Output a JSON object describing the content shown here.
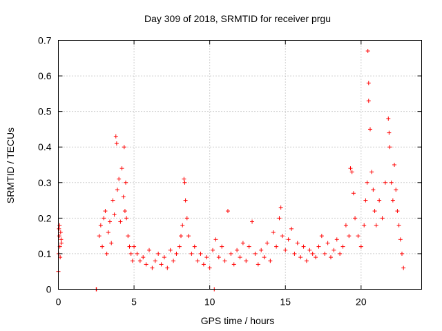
{
  "chart_data": {
    "type": "scatter",
    "title": "Day 309 of 2018, SRMTID for receiver prgu",
    "xlabel": "GPS time / hours",
    "ylabel": "SRMTID / TECUs",
    "xlim": [
      0,
      24
    ],
    "ylim": [
      0,
      0.7
    ],
    "x_ticks": [
      0,
      5,
      10,
      15,
      20
    ],
    "x_tick_labels": [
      "0",
      "5",
      "10",
      "15",
      "20"
    ],
    "y_ticks": [
      0,
      0.1,
      0.2,
      0.3,
      0.4,
      0.5,
      0.6,
      0.7
    ],
    "y_tick_labels": [
      "0",
      "0.1",
      "0.2",
      "0.3",
      "0.4",
      "0.5",
      "0.6",
      "0.7"
    ],
    "grid": true,
    "marker": "plus",
    "series": [
      {
        "name": "SRMTID",
        "color": "#ff0000",
        "x": [
          0.0,
          0.02,
          0.04,
          0.06,
          0.08,
          0.1,
          0.12,
          0.15,
          0.18,
          0.2,
          2.5,
          2.52,
          2.7,
          2.8,
          2.9,
          3.0,
          3.1,
          3.2,
          3.3,
          3.4,
          3.5,
          3.6,
          3.7,
          3.8,
          3.85,
          3.9,
          4.0,
          4.1,
          4.2,
          4.3,
          4.35,
          4.4,
          4.45,
          4.5,
          4.6,
          4.7,
          4.8,
          4.9,
          5.0,
          5.2,
          5.4,
          5.6,
          5.8,
          6.0,
          6.2,
          6.4,
          6.6,
          6.8,
          7.0,
          7.2,
          7.4,
          7.6,
          7.8,
          8.0,
          8.1,
          8.2,
          8.3,
          8.35,
          8.4,
          8.5,
          8.6,
          8.8,
          9.0,
          9.2,
          9.4,
          9.6,
          9.8,
          10.0,
          10.2,
          10.3,
          10.4,
          10.6,
          10.8,
          11.0,
          11.2,
          11.4,
          11.6,
          11.8,
          12.0,
          12.2,
          12.4,
          12.6,
          12.8,
          13.0,
          13.2,
          13.4,
          13.6,
          13.8,
          14.0,
          14.2,
          14.4,
          14.6,
          14.7,
          14.8,
          15.0,
          15.2,
          15.4,
          15.6,
          15.8,
          16.0,
          16.2,
          16.4,
          16.6,
          16.8,
          17.0,
          17.2,
          17.4,
          17.6,
          17.8,
          18.0,
          18.2,
          18.4,
          18.6,
          18.8,
          19.0,
          19.2,
          19.3,
          19.4,
          19.5,
          19.6,
          19.8,
          20.0,
          20.2,
          20.3,
          20.4,
          20.45,
          20.5,
          20.5,
          20.6,
          20.7,
          20.8,
          20.9,
          21.0,
          21.2,
          21.4,
          21.6,
          21.8,
          21.85,
          21.9,
          22.0,
          22.1,
          22.2,
          22.3,
          22.4,
          22.5,
          22.6,
          22.7,
          22.8
        ],
        "y": [
          0.05,
          0.1,
          0.17,
          0.15,
          0.18,
          0.12,
          0.09,
          0.16,
          0.14,
          0.13,
          0.0,
          0.0,
          0.15,
          0.18,
          0.12,
          0.2,
          0.22,
          0.1,
          0.16,
          0.19,
          0.13,
          0.25,
          0.21,
          0.43,
          0.41,
          0.28,
          0.31,
          0.19,
          0.34,
          0.26,
          0.4,
          0.22,
          0.3,
          0.2,
          0.15,
          0.12,
          0.1,
          0.08,
          0.12,
          0.1,
          0.08,
          0.09,
          0.07,
          0.11,
          0.06,
          0.08,
          0.1,
          0.07,
          0.09,
          0.06,
          0.11,
          0.08,
          0.1,
          0.12,
          0.15,
          0.18,
          0.31,
          0.3,
          0.25,
          0.2,
          0.15,
          0.1,
          0.12,
          0.08,
          0.1,
          0.07,
          0.09,
          0.06,
          0.11,
          0.0,
          0.14,
          0.09,
          0.12,
          0.08,
          0.22,
          0.1,
          0.07,
          0.11,
          0.09,
          0.13,
          0.08,
          0.12,
          0.19,
          0.1,
          0.07,
          0.11,
          0.09,
          0.13,
          0.08,
          0.16,
          0.12,
          0.2,
          0.23,
          0.15,
          0.11,
          0.14,
          0.17,
          0.1,
          0.13,
          0.09,
          0.12,
          0.08,
          0.11,
          0.1,
          0.09,
          0.12,
          0.15,
          0.1,
          0.13,
          0.09,
          0.11,
          0.14,
          0.1,
          0.12,
          0.18,
          0.15,
          0.34,
          0.33,
          0.27,
          0.2,
          0.15,
          0.12,
          0.18,
          0.25,
          0.3,
          0.67,
          0.58,
          0.53,
          0.45,
          0.33,
          0.28,
          0.22,
          0.18,
          0.25,
          0.2,
          0.3,
          0.48,
          0.44,
          0.4,
          0.3,
          0.25,
          0.35,
          0.28,
          0.22,
          0.18,
          0.14,
          0.1,
          0.06
        ]
      }
    ]
  }
}
